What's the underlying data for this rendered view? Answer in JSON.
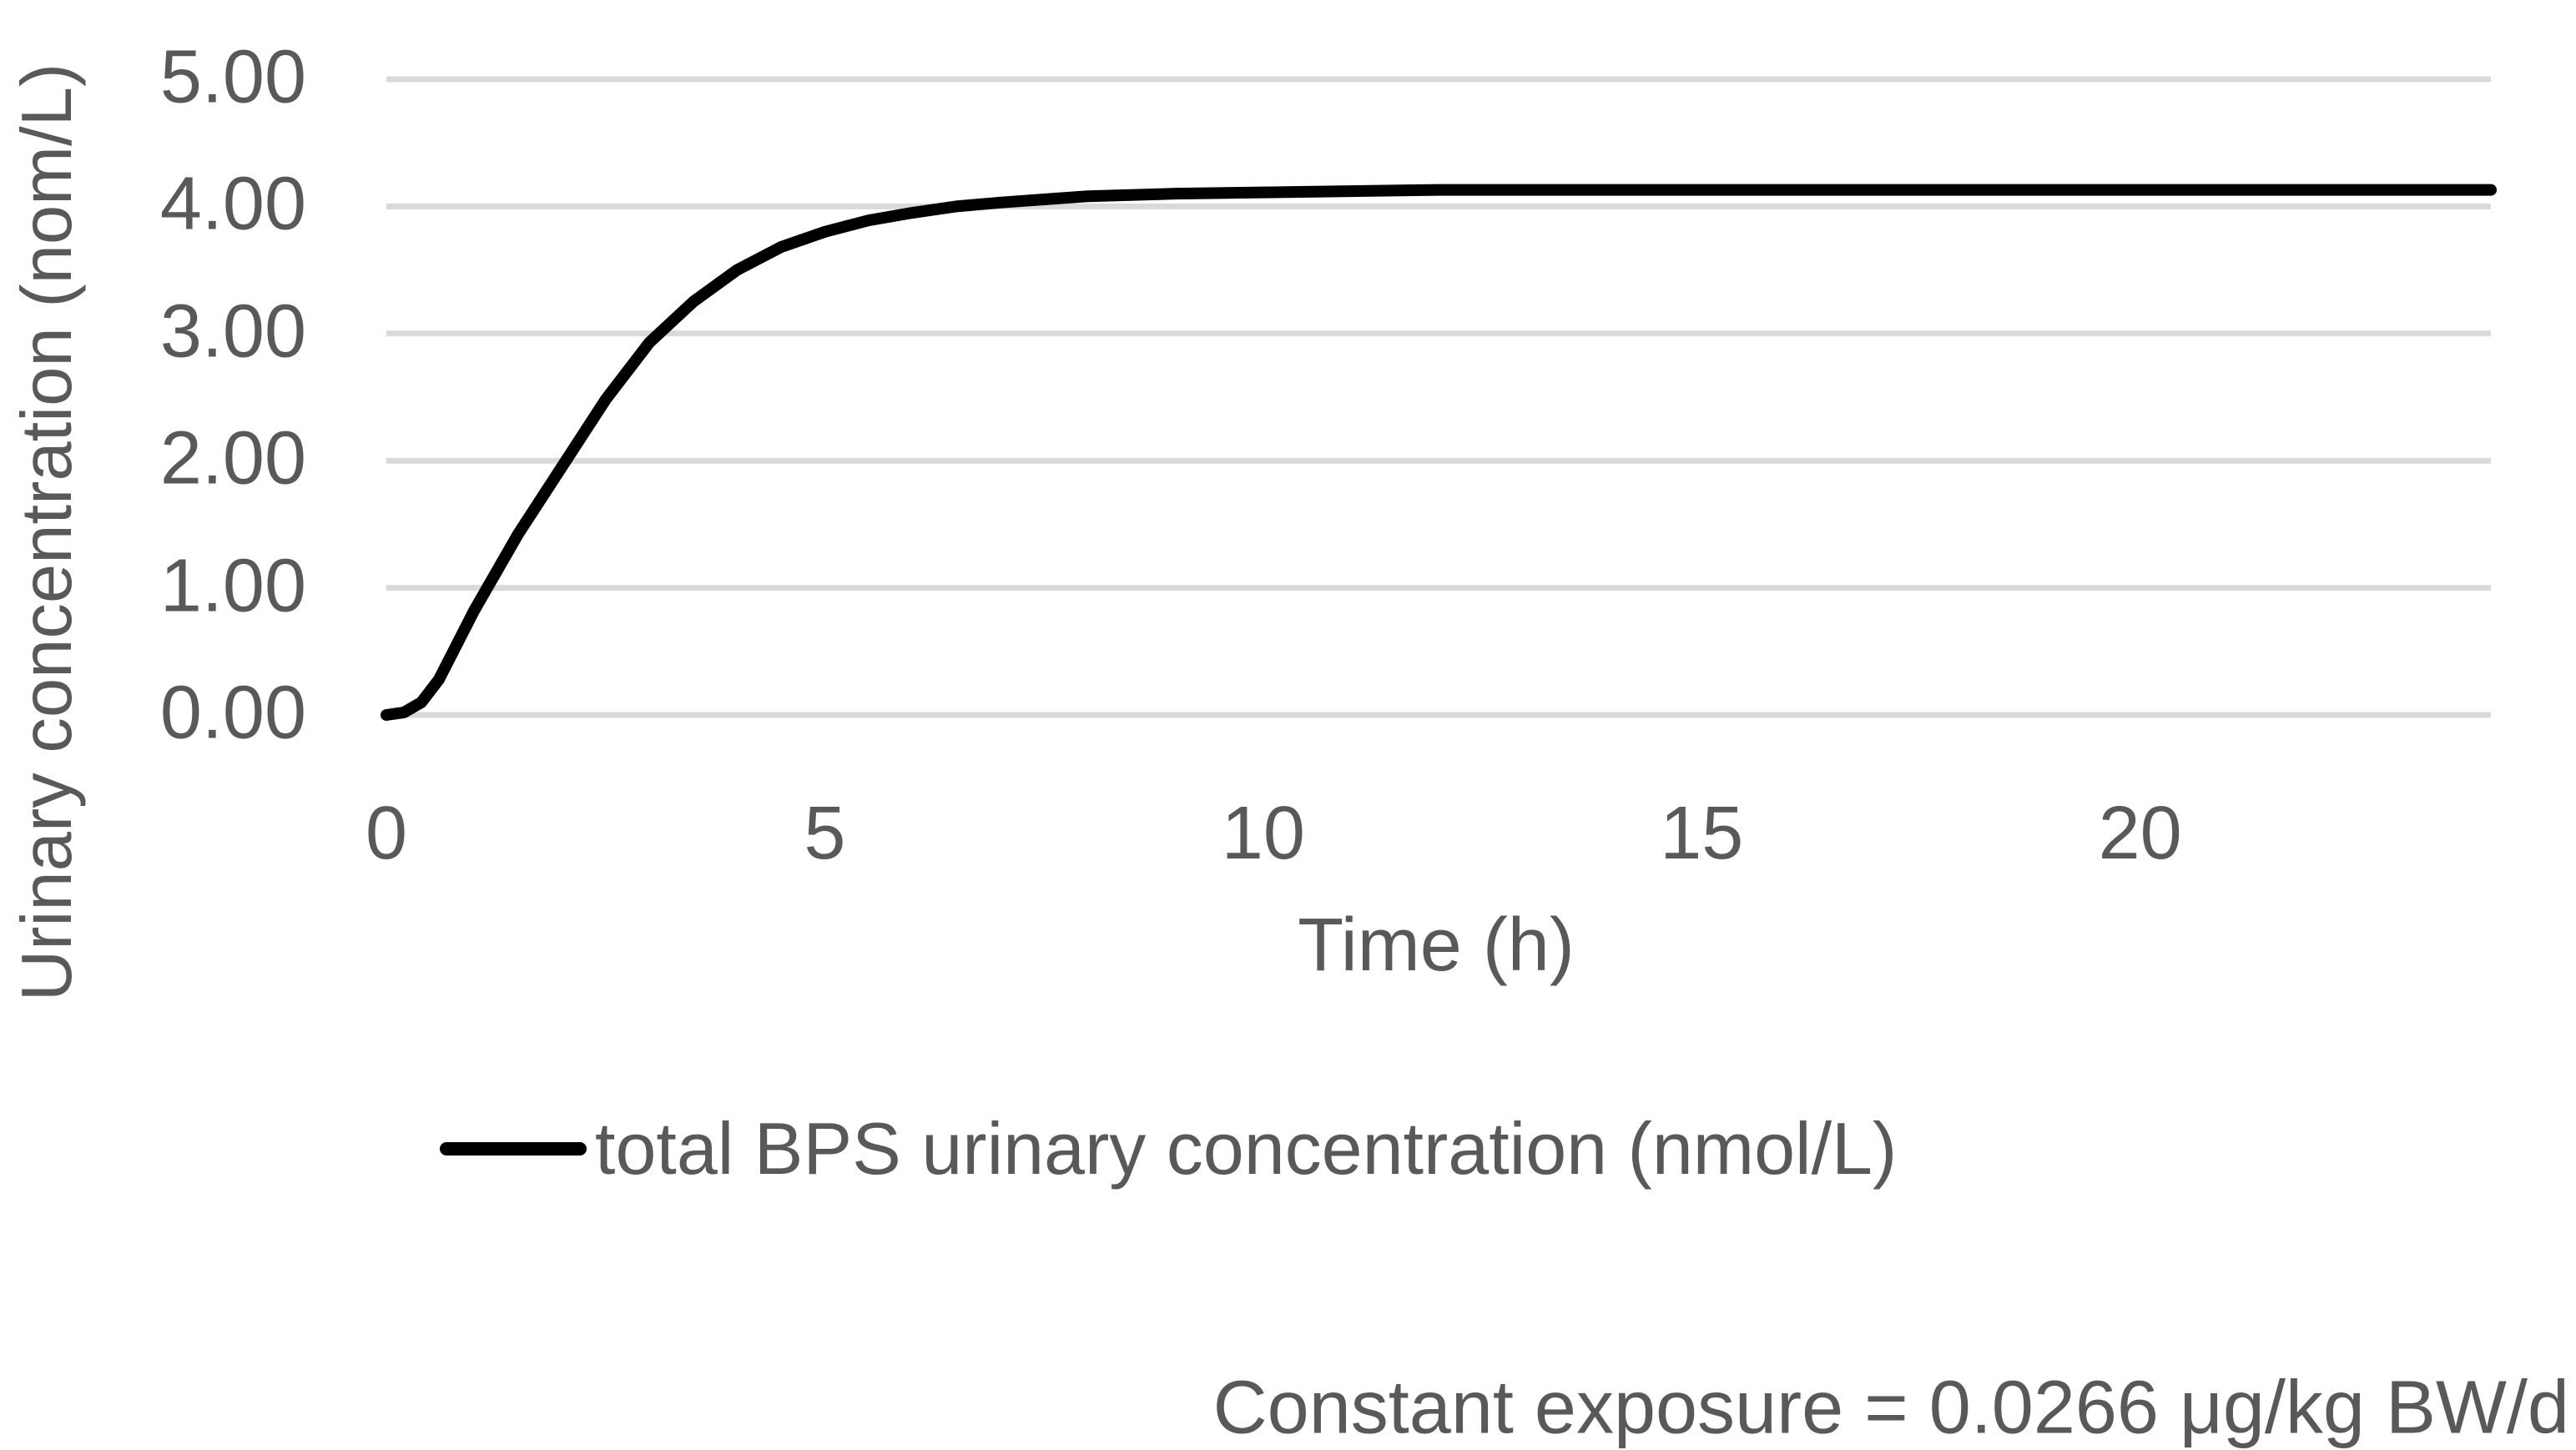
{
  "chart_data": {
    "type": "line",
    "title": "",
    "xlabel": "Time (h)",
    "ylabel": "Urinary concentration (nom/L)",
    "xlim": [
      0,
      24
    ],
    "ylim": [
      0,
      5
    ],
    "x_ticks": [
      0,
      5,
      10,
      15,
      20
    ],
    "y_ticks": [
      "0.00",
      "1.00",
      "2.00",
      "3.00",
      "4.00",
      "5.00"
    ],
    "grid": "horizontal gridlines only, no axis lines",
    "legend_position": "bottom",
    "annotation": "Constant exposure = 0.0266 μg/kg BW/d",
    "plateau_value": 4.13,
    "series": [
      {
        "name": "total BPS urinary concentration (nmol/L)",
        "color": "#000000",
        "x": [
          0,
          0.2,
          0.4,
          0.6,
          0.8,
          1.0,
          1.2,
          1.5,
          2.0,
          2.5,
          3.0,
          3.5,
          4.0,
          4.5,
          5.0,
          5.5,
          6.0,
          6.5,
          7.0,
          8.0,
          9.0,
          10.0,
          11.0,
          12.0,
          14.0,
          16.0,
          18.0,
          20.0,
          22.0,
          24.0
        ],
        "y": [
          0.0,
          0.02,
          0.1,
          0.28,
          0.55,
          0.82,
          1.06,
          1.42,
          1.95,
          2.48,
          2.93,
          3.25,
          3.5,
          3.68,
          3.8,
          3.89,
          3.95,
          4.0,
          4.03,
          4.08,
          4.1,
          4.11,
          4.12,
          4.13,
          4.13,
          4.13,
          4.13,
          4.13,
          4.13,
          4.13
        ]
      }
    ]
  },
  "colors": {
    "curve": "#000000",
    "grid": "#D9D9D9",
    "text": "#595959",
    "background": "#FFFFFF"
  }
}
